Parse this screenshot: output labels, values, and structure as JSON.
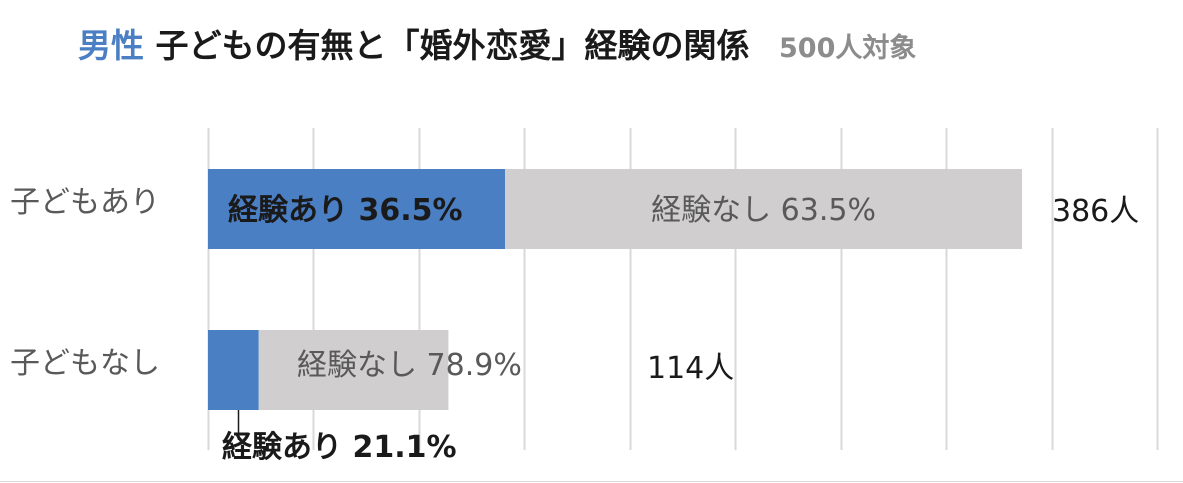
{
  "title": {
    "gender": "男性",
    "main": "子どもの有無と「婚外恋愛」経験の関係",
    "sample": "500人対象"
  },
  "colors": {
    "accent": "#4a7fc4",
    "experienced": "#4a7fc4",
    "not_experienced": "#d0cece",
    "grid": "#d9d9d9"
  },
  "chart_data": {
    "type": "bar",
    "orientation": "horizontal",
    "stacked": true,
    "categories": [
      "子どもあり",
      "子どもなし"
    ],
    "series": [
      {
        "key": "experienced",
        "values": [
          36.5,
          21.1
        ],
        "labels": [
          "経験あり 36.5%",
          "経験あり 21.1%"
        ]
      },
      {
        "key": "not_experienced",
        "values": [
          63.5,
          78.9
        ],
        "labels": [
          "経験なし 63.5%",
          "経験なし 78.9%"
        ]
      }
    ],
    "counts": [
      386,
      114
    ],
    "count_labels": [
      "386人",
      "114人"
    ],
    "xlim": [
      0,
      450
    ],
    "grid": true,
    "legend": false
  }
}
